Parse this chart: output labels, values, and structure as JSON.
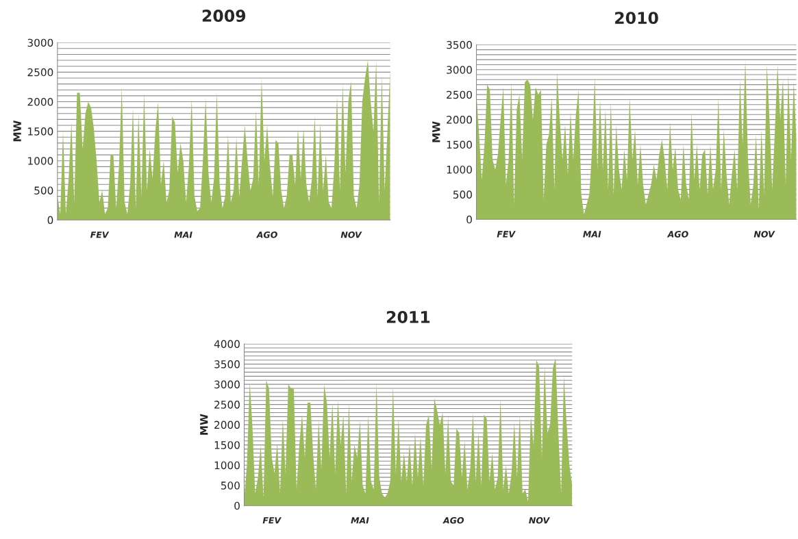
{
  "chart_data": [
    {
      "type": "area",
      "title": "2009",
      "ylabel": "MW",
      "color": "#9bbb59",
      "grid": "y",
      "categories": [
        null,
        null,
        null,
        null,
        null,
        null,
        null,
        null,
        null,
        null,
        null,
        null,
        null,
        null,
        null,
        "FEV",
        null,
        null,
        null,
        null,
        null,
        null,
        null,
        null,
        null,
        null,
        null,
        null,
        null,
        null,
        null,
        null,
        null,
        null,
        null,
        null,
        null,
        null,
        null,
        null,
        null,
        null,
        null,
        null,
        null,
        "MAI",
        null,
        null,
        null,
        null,
        null,
        null,
        null,
        null,
        null,
        null,
        null,
        null,
        null,
        null,
        null,
        null,
        null,
        null,
        null,
        null,
        null,
        null,
        null,
        null,
        null,
        null,
        null,
        null,
        null,
        "AGO",
        null,
        null,
        null,
        null,
        null,
        null,
        null,
        null,
        null,
        null,
        null,
        null,
        null,
        null,
        null,
        null,
        null,
        null,
        null,
        null,
        null,
        null,
        null,
        null,
        null,
        null,
        null,
        null,
        null,
        "NOV",
        null,
        null,
        null,
        null,
        null,
        null,
        null,
        null,
        null,
        null,
        null,
        null,
        null,
        null
      ],
      "values": [
        400,
        100,
        1500,
        100,
        700,
        1650,
        300,
        2150,
        2150,
        1200,
        1800,
        2000,
        1900,
        1550,
        1000,
        300,
        500,
        100,
        200,
        1100,
        1100,
        200,
        900,
        2250,
        300,
        100,
        600,
        1900,
        200,
        1800,
        400,
        2150,
        500,
        1200,
        700,
        1500,
        2000,
        600,
        1000,
        300,
        500,
        1750,
        1650,
        800,
        1300,
        1000,
        300,
        900,
        2050,
        400,
        150,
        200,
        1000,
        2050,
        800,
        300,
        700,
        2150,
        600,
        200,
        400,
        1450,
        300,
        500,
        1400,
        400,
        1000,
        1600,
        1000,
        500,
        700,
        1850,
        600,
        2400,
        1000,
        1600,
        900,
        400,
        1350,
        1300,
        500,
        200,
        400,
        1100,
        1100,
        600,
        1550,
        700,
        1550,
        600,
        300,
        700,
        1750,
        400,
        1650,
        500,
        1100,
        300,
        200,
        900,
        2100,
        500,
        2300,
        800,
        2000,
        2350,
        400,
        200,
        600,
        2000,
        2400,
        2700,
        2000,
        1500,
        2700,
        300,
        2450,
        500,
        1500,
        2550
      ],
      "ylim": [
        0,
        3000
      ],
      "yticks": [
        0,
        {
          "value": 100,
          "label": null
        },
        {
          "value": 200,
          "label": null
        },
        {
          "value": 300,
          "label": null
        },
        {
          "value": 400,
          "label": null
        },
        500,
        {
          "value": 600,
          "label": null
        },
        {
          "value": 700,
          "label": null
        },
        {
          "value": 800,
          "label": null
        },
        {
          "value": 900,
          "label": null
        },
        1000,
        {
          "value": 1100,
          "label": null
        },
        {
          "value": 1200,
          "label": null
        },
        {
          "value": 1300,
          "label": null
        },
        {
          "value": 1400,
          "label": null
        },
        1500,
        {
          "value": 1600,
          "label": null
        },
        {
          "value": 1700,
          "label": null
        },
        {
          "value": 1800,
          "label": null
        },
        {
          "value": 1900,
          "label": null
        },
        2000,
        {
          "value": 2100,
          "label": null
        },
        {
          "value": 2200,
          "label": null
        },
        {
          "value": 2300,
          "label": null
        },
        {
          "value": 2400,
          "label": null
        },
        2500,
        {
          "value": 2600,
          "label": null
        },
        {
          "value": 2700,
          "label": null
        },
        {
          "value": 2800,
          "label": null
        },
        {
          "value": 2900,
          "label": null
        },
        3000
      ]
    },
    {
      "type": "area",
      "title": "2010",
      "ylabel": "MW",
      "color": "#9bbb59",
      "grid": "y",
      "categories": [
        null,
        null,
        null,
        null,
        null,
        null,
        null,
        null,
        null,
        null,
        null,
        "FEV",
        null,
        null,
        null,
        null,
        null,
        null,
        null,
        null,
        null,
        null,
        null,
        null,
        null,
        null,
        null,
        null,
        null,
        null,
        null,
        null,
        null,
        null,
        null,
        null,
        null,
        null,
        null,
        null,
        null,
        null,
        null,
        "MAI",
        null,
        null,
        null,
        null,
        null,
        null,
        null,
        null,
        null,
        null,
        null,
        null,
        null,
        null,
        null,
        null,
        null,
        null,
        null,
        null,
        null,
        null,
        null,
        null,
        null,
        null,
        null,
        null,
        null,
        null,
        null,
        "AGO",
        null,
        null,
        null,
        null,
        null,
        null,
        null,
        null,
        null,
        null,
        null,
        null,
        null,
        null,
        null,
        null,
        null,
        null,
        null,
        null,
        null,
        null,
        null,
        null,
        null,
        null,
        null,
        null,
        null,
        null,
        null,
        "NOV",
        null,
        null,
        null,
        null,
        null,
        null,
        null,
        null,
        null,
        null,
        null,
        null
      ],
      "values": [
        2500,
        1700,
        800,
        1500,
        2700,
        2600,
        1200,
        1000,
        1300,
        2000,
        2650,
        700,
        1200,
        2750,
        300,
        2200,
        2500,
        1200,
        2750,
        2800,
        2700,
        2000,
        2650,
        2500,
        2600,
        400,
        1500,
        1700,
        2450,
        600,
        2950,
        2000,
        1200,
        1900,
        900,
        2150,
        1200,
        2100,
        2600,
        500,
        100,
        300,
        500,
        1400,
        2850,
        1000,
        2400,
        1000,
        2200,
        600,
        2350,
        500,
        1900,
        1000,
        600,
        1400,
        800,
        2450,
        1200,
        1800,
        700,
        1500,
        700,
        300,
        500,
        700,
        1100,
        800,
        1300,
        1600,
        1200,
        600,
        1950,
        1000,
        1450,
        600,
        400,
        1500,
        700,
        400,
        2150,
        800,
        1500,
        600,
        1300,
        1400,
        500,
        1500,
        600,
        1000,
        2450,
        600,
        1800,
        900,
        300,
        900,
        1400,
        600,
        2800,
        1500,
        3200,
        1200,
        300,
        700,
        1700,
        200,
        1800,
        500,
        3100,
        2000,
        600,
        1800,
        3100,
        2000,
        2800,
        700,
        2900,
        1200,
        2750,
        1600
      ],
      "ylim": [
        0,
        3500
      ],
      "yticks": [
        0,
        {
          "value": 100,
          "label": null
        },
        {
          "value": 200,
          "label": null
        },
        {
          "value": 300,
          "label": null
        },
        {
          "value": 400,
          "label": null
        },
        500,
        {
          "value": 600,
          "label": null
        },
        {
          "value": 700,
          "label": null
        },
        {
          "value": 800,
          "label": null
        },
        {
          "value": 900,
          "label": null
        },
        1000,
        {
          "value": 1100,
          "label": null
        },
        {
          "value": 1200,
          "label": null
        },
        {
          "value": 1300,
          "label": null
        },
        {
          "value": 1400,
          "label": null
        },
        1500,
        {
          "value": 1600,
          "label": null
        },
        {
          "value": 1700,
          "label": null
        },
        {
          "value": 1800,
          "label": null
        },
        {
          "value": 1900,
          "label": null
        },
        2000,
        {
          "value": 2100,
          "label": null
        },
        {
          "value": 2200,
          "label": null
        },
        {
          "value": 2300,
          "label": null
        },
        {
          "value": 2400,
          "label": null
        },
        2500,
        {
          "value": 2600,
          "label": null
        },
        {
          "value": 2700,
          "label": null
        },
        {
          "value": 2800,
          "label": null
        },
        {
          "value": 2900,
          "label": null
        },
        3000,
        {
          "value": 3100,
          "label": null
        },
        {
          "value": 3200,
          "label": null
        },
        {
          "value": 3300,
          "label": null
        },
        {
          "value": 3400,
          "label": null
        },
        3500
      ]
    },
    {
      "type": "area",
      "title": "2011",
      "ylabel": "MW",
      "color": "#9bbb59",
      "grid": "y",
      "categories": [
        null,
        null,
        null,
        null,
        null,
        null,
        null,
        null,
        null,
        null,
        "FEV",
        null,
        null,
        null,
        null,
        null,
        null,
        null,
        null,
        null,
        null,
        null,
        null,
        null,
        null,
        null,
        null,
        null,
        null,
        null,
        null,
        null,
        null,
        null,
        null,
        null,
        null,
        null,
        null,
        null,
        null,
        null,
        "MAI",
        null,
        null,
        null,
        null,
        null,
        null,
        null,
        null,
        null,
        null,
        null,
        null,
        null,
        null,
        null,
        null,
        null,
        null,
        null,
        null,
        null,
        null,
        null,
        null,
        null,
        null,
        null,
        null,
        null,
        null,
        null,
        null,
        null,
        "AGO",
        null,
        null,
        null,
        null,
        null,
        null,
        null,
        null,
        null,
        null,
        null,
        null,
        null,
        null,
        null,
        null,
        null,
        null,
        null,
        null,
        null,
        null,
        null,
        null,
        null,
        null,
        null,
        null,
        null,
        null,
        "NOV",
        null,
        null,
        null,
        null,
        null,
        null,
        null,
        null,
        null,
        null,
        null,
        null
      ],
      "values": [
        200,
        1000,
        3050,
        1950,
        300,
        700,
        1500,
        200,
        3100,
        2900,
        1200,
        800,
        1550,
        300,
        2150,
        800,
        3000,
        2900,
        2900,
        400,
        1500,
        2250,
        1200,
        2550,
        2550,
        1300,
        400,
        2100,
        900,
        3000,
        2550,
        1200,
        2550,
        800,
        2600,
        1500,
        2250,
        300,
        2550,
        600,
        1500,
        1200,
        2100,
        500,
        300,
        2250,
        600,
        400,
        3050,
        700,
        300,
        200,
        300,
        600,
        2950,
        800,
        2150,
        600,
        1300,
        600,
        1550,
        500,
        1800,
        700,
        1700,
        500,
        2000,
        2250,
        900,
        2650,
        2350,
        2000,
        2300,
        800,
        2200,
        600,
        500,
        1900,
        1800,
        700,
        1600,
        400,
        900,
        2300,
        600,
        1800,
        500,
        2250,
        2150,
        600,
        1300,
        400,
        700,
        2650,
        400,
        1000,
        300,
        800,
        2050,
        700,
        2250,
        300,
        400,
        100,
        2200,
        1500,
        3600,
        3450,
        1200,
        3450,
        1800,
        2000,
        3400,
        3650,
        1800,
        300,
        3200,
        2000,
        1000,
        500
      ],
      "ylim": [
        0,
        4000
      ],
      "yticks": [
        0,
        {
          "value": 100,
          "label": null
        },
        {
          "value": 200,
          "label": null
        },
        {
          "value": 300,
          "label": null
        },
        {
          "value": 400,
          "label": null
        },
        500,
        {
          "value": 600,
          "label": null
        },
        {
          "value": 700,
          "label": null
        },
        {
          "value": 800,
          "label": null
        },
        {
          "value": 900,
          "label": null
        },
        1000,
        {
          "value": 1100,
          "label": null
        },
        {
          "value": 1200,
          "label": null
        },
        {
          "value": 1300,
          "label": null
        },
        {
          "value": 1400,
          "label": null
        },
        1500,
        {
          "value": 1600,
          "label": null
        },
        {
          "value": 1700,
          "label": null
        },
        {
          "value": 1800,
          "label": null
        },
        {
          "value": 1900,
          "label": null
        },
        2000,
        {
          "value": 2100,
          "label": null
        },
        {
          "value": 2200,
          "label": null
        },
        {
          "value": 2300,
          "label": null
        },
        {
          "value": 2400,
          "label": null
        },
        2500,
        {
          "value": 2600,
          "label": null
        },
        {
          "value": 2700,
          "label": null
        },
        {
          "value": 2800,
          "label": null
        },
        {
          "value": 2900,
          "label": null
        },
        3000,
        {
          "value": 3100,
          "label": null
        },
        {
          "value": 3200,
          "label": null
        },
        {
          "value": 3300,
          "label": null
        },
        {
          "value": 3400,
          "label": null
        },
        3500,
        {
          "value": 3600,
          "label": null
        },
        {
          "value": 3700,
          "label": null
        },
        {
          "value": 3800,
          "label": null
        },
        {
          "value": 3900,
          "label": null
        },
        4000
      ]
    }
  ]
}
